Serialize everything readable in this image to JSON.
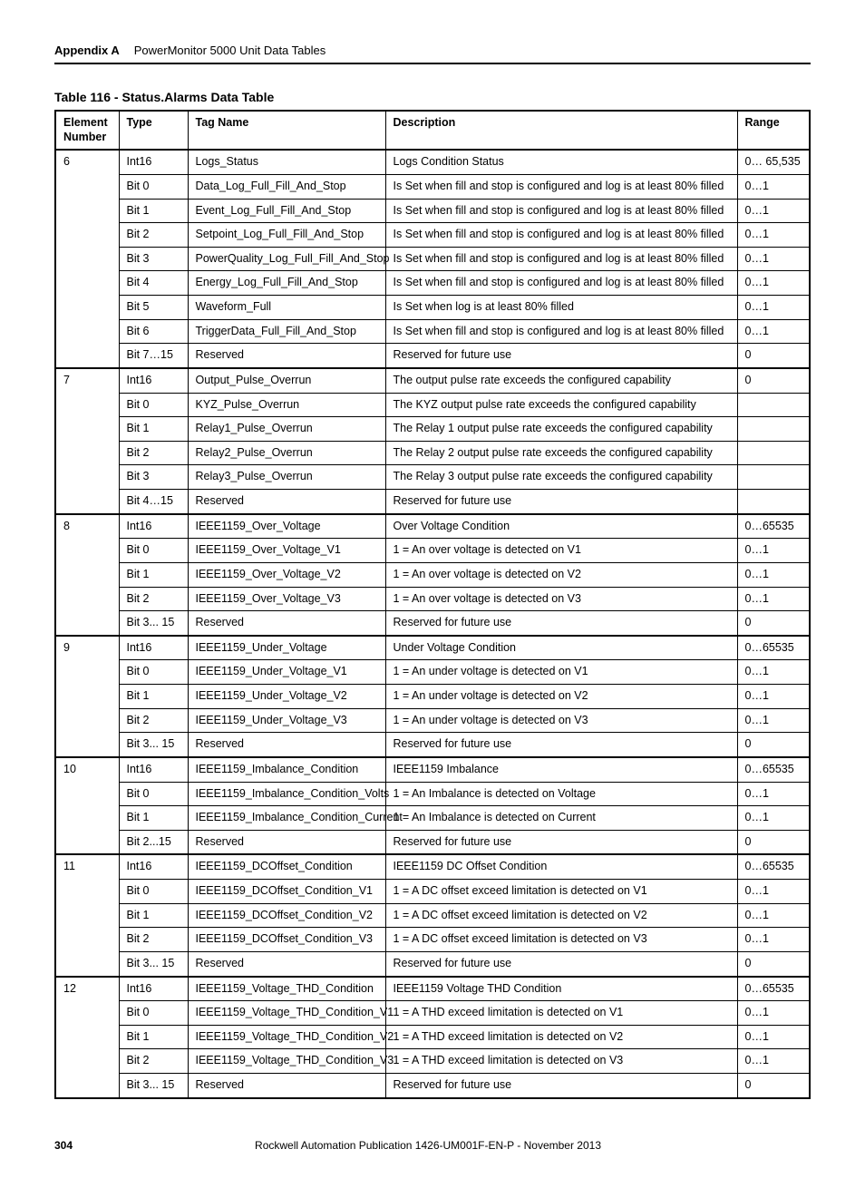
{
  "header": {
    "appendix": "Appendix A",
    "doc_title": "PowerMonitor 5000 Unit Data Tables"
  },
  "table_title": "Table 116 - Status.Alarms Data Table",
  "columns": {
    "element": "Element Number",
    "type": "Type",
    "tag": "Tag Name",
    "desc": "Description",
    "range": "Range"
  },
  "groups": [
    {
      "element": "6",
      "rows": [
        {
          "type": "Int16",
          "tag": "Logs_Status",
          "desc": "Logs Condition Status",
          "range": "0… 65,535"
        },
        {
          "type": "Bit 0",
          "tag": "Data_Log_Full_Fill_And_Stop",
          "desc": "Is Set when fill and stop is configured and log is at least 80% filled",
          "range": "0…1"
        },
        {
          "type": "Bit 1",
          "tag": "Event_Log_Full_Fill_And_Stop",
          "desc": "Is Set when fill and stop is configured and log is at least 80% filled",
          "range": "0…1"
        },
        {
          "type": "Bit 2",
          "tag": "Setpoint_Log_Full_Fill_And_Stop",
          "desc": "Is Set when fill and stop is configured and log is at least 80% filled",
          "range": "0…1"
        },
        {
          "type": "Bit 3",
          "tag": "PowerQuality_Log_Full_Fill_And_Stop",
          "desc": "Is Set when fill and stop is configured and log is at least 80% filled",
          "range": "0…1"
        },
        {
          "type": "Bit 4",
          "tag": "Energy_Log_Full_Fill_And_Stop",
          "desc": "Is Set when fill and stop is configured and log is at least 80% filled",
          "range": "0…1"
        },
        {
          "type": "Bit 5",
          "tag": "Waveform_Full",
          "desc": "Is Set when log is at least 80% filled",
          "range": "0…1"
        },
        {
          "type": "Bit 6",
          "tag": "TriggerData_Full_Fill_And_Stop",
          "desc": "Is Set when fill and stop is configured and log is at least 80% filled",
          "range": "0…1"
        },
        {
          "type": "Bit 7…15",
          "tag": "Reserved",
          "desc": "Reserved for future use",
          "range": "0"
        }
      ]
    },
    {
      "element": "7",
      "rows": [
        {
          "type": "Int16",
          "tag": "Output_Pulse_Overrun",
          "desc": "The output pulse rate exceeds the configured capability",
          "range": "0"
        },
        {
          "type": "Bit 0",
          "tag": "KYZ_Pulse_Overrun",
          "desc": "The KYZ output pulse rate exceeds the configured capability",
          "range": ""
        },
        {
          "type": "Bit 1",
          "tag": "Relay1_Pulse_Overrun",
          "desc": "The Relay 1 output pulse rate exceeds the configured capability",
          "range": ""
        },
        {
          "type": "Bit 2",
          "tag": "Relay2_Pulse_Overrun",
          "desc": "The Relay 2 output pulse rate exceeds the configured capability",
          "range": ""
        },
        {
          "type": "Bit 3",
          "tag": "Relay3_Pulse_Overrun",
          "desc": "The Relay 3 output pulse rate exceeds the configured capability",
          "range": ""
        },
        {
          "type": "Bit 4…15",
          "tag": "Reserved",
          "desc": "Reserved for future use",
          "range": ""
        }
      ]
    },
    {
      "element": "8",
      "rows": [
        {
          "type": "Int16",
          "tag": "IEEE1159_Over_Voltage",
          "desc": "Over Voltage Condition",
          "range": "0…65535"
        },
        {
          "type": "Bit 0",
          "tag": "IEEE1159_Over_Voltage_V1",
          "desc": "1 = An over voltage is detected on V1",
          "range": "0…1"
        },
        {
          "type": "Bit 1",
          "tag": "IEEE1159_Over_Voltage_V2",
          "desc": "1 = An over voltage is detected on V2",
          "range": "0…1"
        },
        {
          "type": "Bit 2",
          "tag": "IEEE1159_Over_Voltage_V3",
          "desc": "1 = An over voltage is detected on V3",
          "range": "0…1"
        },
        {
          "type": "Bit 3... 15",
          "tag": "Reserved",
          "desc": "Reserved for future use",
          "range": "0"
        }
      ]
    },
    {
      "element": "9",
      "rows": [
        {
          "type": "Int16",
          "tag": "IEEE1159_Under_Voltage",
          "desc": "Under Voltage Condition",
          "range": "0…65535"
        },
        {
          "type": "Bit 0",
          "tag": "IEEE1159_Under_Voltage_V1",
          "desc": "1 = An under voltage is detected on V1",
          "range": "0…1"
        },
        {
          "type": "Bit 1",
          "tag": "IEEE1159_Under_Voltage_V2",
          "desc": "1 = An under voltage is detected on V2",
          "range": "0…1"
        },
        {
          "type": "Bit 2",
          "tag": "IEEE1159_Under_Voltage_V3",
          "desc": "1 = An under voltage is detected on V3",
          "range": "0…1"
        },
        {
          "type": "Bit 3... 15",
          "tag": "Reserved",
          "desc": "Reserved for future use",
          "range": "0"
        }
      ]
    },
    {
      "element": "10",
      "rows": [
        {
          "type": "Int16",
          "tag": "IEEE1159_Imbalance_Condition",
          "desc": "IEEE1159 Imbalance",
          "range": "0…65535"
        },
        {
          "type": "Bit 0",
          "tag": "IEEE1159_Imbalance_Condition_Volts",
          "desc": "1 = An Imbalance is detected on Voltage",
          "range": "0…1"
        },
        {
          "type": "Bit 1",
          "tag": "IEEE1159_Imbalance_Condition_Current",
          "desc": "1 = An Imbalance is detected on Current",
          "range": "0…1"
        },
        {
          "type": "Bit 2...15",
          "tag": "Reserved",
          "desc": "Reserved for future use",
          "range": "0"
        }
      ]
    },
    {
      "element": "11",
      "rows": [
        {
          "type": "Int16",
          "tag": "IEEE1159_DCOffset_Condition",
          "desc": "IEEE1159 DC Offset Condition",
          "range": "0…65535"
        },
        {
          "type": "Bit 0",
          "tag": "IEEE1159_DCOffset_Condition_V1",
          "desc": "1 = A DC offset exceed limitation is detected on V1",
          "range": "0…1"
        },
        {
          "type": "Bit 1",
          "tag": "IEEE1159_DCOffset_Condition_V2",
          "desc": "1 = A DC offset exceed limitation is detected on V2",
          "range": "0…1"
        },
        {
          "type": "Bit 2",
          "tag": "IEEE1159_DCOffset_Condition_V3",
          "desc": "1 = A DC offset exceed limitation is detected on V3",
          "range": "0…1"
        },
        {
          "type": "Bit 3... 15",
          "tag": "Reserved",
          "desc": "Reserved for future use",
          "range": "0"
        }
      ]
    },
    {
      "element": "12",
      "rows": [
        {
          "type": "Int16",
          "tag": "IEEE1159_Voltage_THD_Condition",
          "desc": "IEEE1159 Voltage THD Condition",
          "range": "0…65535"
        },
        {
          "type": "Bit 0",
          "tag": "IEEE1159_Voltage_THD_Condition_V1",
          "desc": "1 = A THD exceed limitation is detected on V1",
          "range": "0…1"
        },
        {
          "type": "Bit 1",
          "tag": "IEEE1159_Voltage_THD_Condition_V2",
          "desc": "1 = A THD exceed limitation is detected on V2",
          "range": "0…1"
        },
        {
          "type": "Bit 2",
          "tag": "IEEE1159_Voltage_THD_Condition_V3",
          "desc": "1 = A THD exceed limitation is detected on V3",
          "range": "0…1"
        },
        {
          "type": "Bit 3... 15",
          "tag": "Reserved",
          "desc": "Reserved for future use",
          "range": "0"
        }
      ]
    }
  ],
  "footer": {
    "page": "304",
    "pub": "Rockwell Automation Publication 1426-UM001F-EN-P - November 2013"
  }
}
